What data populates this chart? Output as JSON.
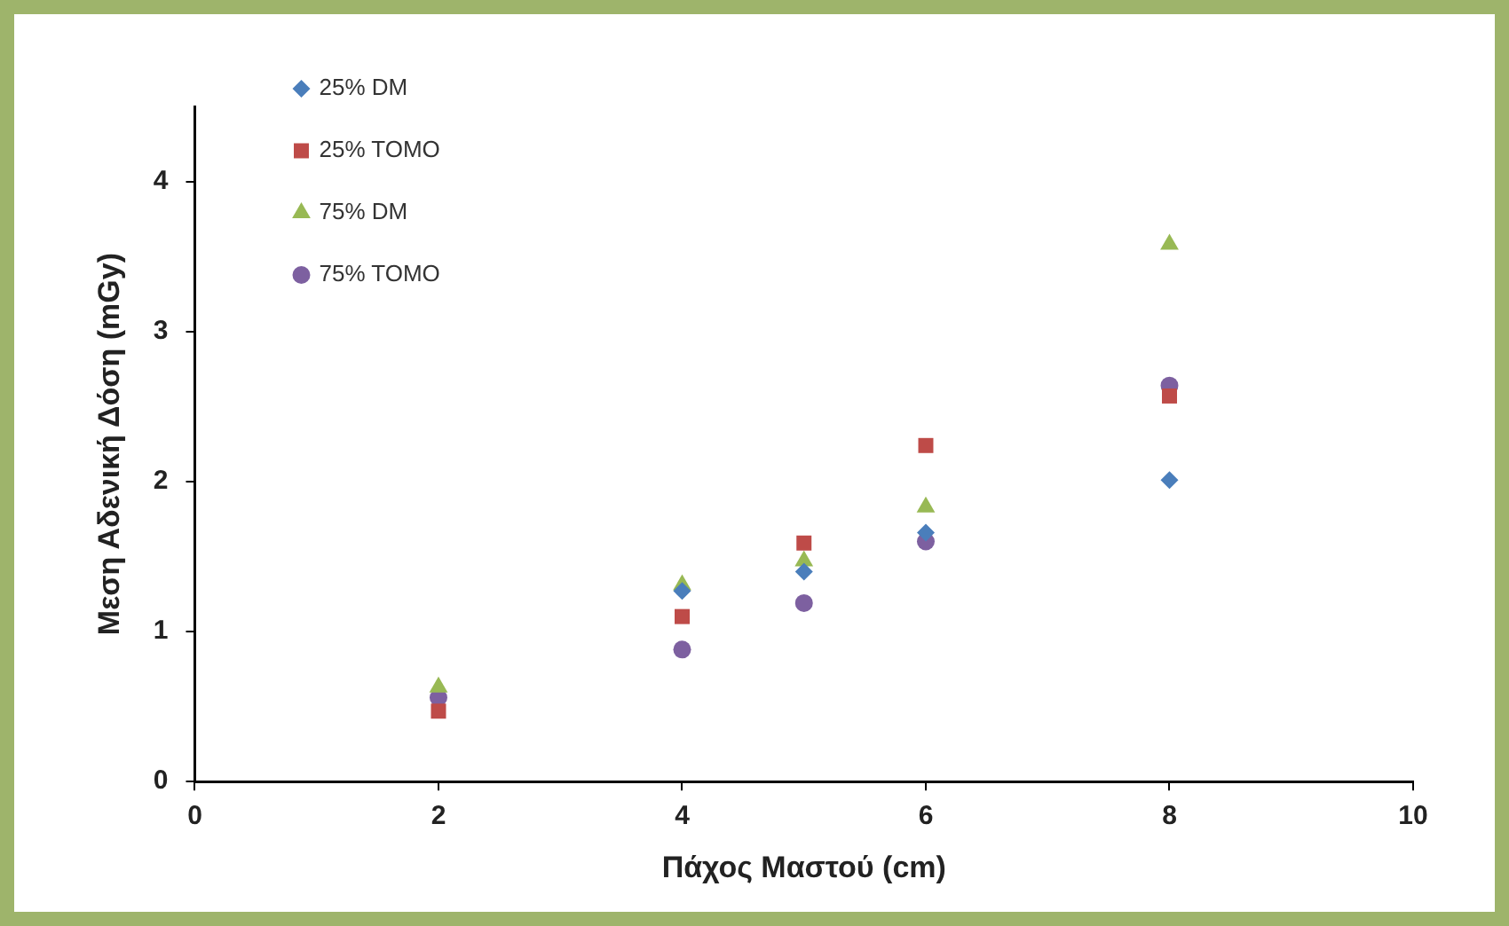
{
  "chart_data": {
    "type": "scatter",
    "xlabel": "Πάχος Μαστού (cm)",
    "ylabel": "Μεση Αδενική Δόση (mGy)",
    "x": [
      2,
      4,
      5,
      6,
      8
    ],
    "series": [
      {
        "name": "25% DM",
        "color": "#4a7ebb",
        "marker": "diamond",
        "values": [
          null,
          1.27,
          1.4,
          1.66,
          2.01
        ]
      },
      {
        "name": "25% TOMO",
        "color": "#be4b48",
        "marker": "square",
        "values": [
          0.47,
          1.1,
          1.59,
          2.24,
          2.57
        ]
      },
      {
        "name": "75% DM",
        "color": "#98b954",
        "marker": "triangle",
        "values": [
          0.63,
          1.31,
          1.47,
          1.83,
          3.58
        ]
      },
      {
        "name": "75% TOMO",
        "color": "#7d60a0",
        "marker": "circle",
        "values": [
          0.56,
          0.88,
          1.19,
          1.6,
          2.64
        ]
      }
    ],
    "xlim": [
      0,
      10
    ],
    "xticks": [
      0,
      2,
      4,
      6,
      8,
      10
    ],
    "ylim": [
      0,
      4.5
    ],
    "yticks": [
      0,
      1,
      2,
      3,
      4
    ],
    "grid": false,
    "legend": "top left"
  }
}
